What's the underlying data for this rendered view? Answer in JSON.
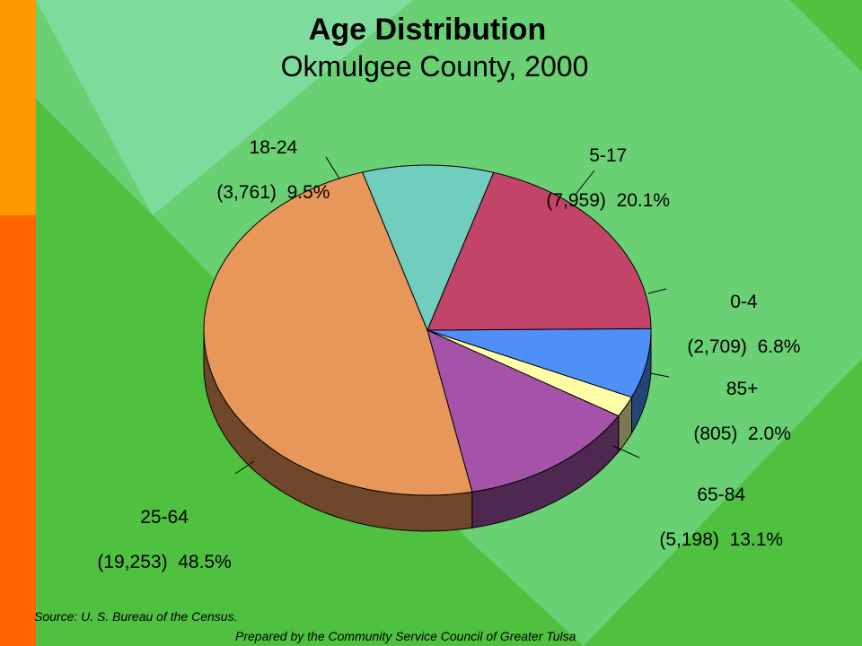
{
  "chart_data": {
    "type": "pie",
    "title": "Age Distribution",
    "subtitle": "Okmulgee County, 2000",
    "slices": [
      {
        "label": "0-4",
        "count": "(2,709)",
        "percent": "6.8%",
        "value": 2709,
        "color": "#4f8ff7"
      },
      {
        "label": "85+",
        "count": "(805)",
        "percent": "2.0%",
        "value": 805,
        "color": "#ffffa8"
      },
      {
        "label": "65-84",
        "count": "(5,198)",
        "percent": "13.1%",
        "value": 5198,
        "color": "#a453a8"
      },
      {
        "label": "25-64",
        "count": "(19,253)",
        "percent": "48.5%",
        "value": 19253,
        "color": "#e8975a"
      },
      {
        "label": "18-24",
        "count": "(3,761)",
        "percent": "9.5%",
        "value": 3761,
        "color": "#71cdbd"
      },
      {
        "label": "5-17",
        "count": "(7,959)",
        "percent": "20.1%",
        "value": 7959,
        "color": "#c24468"
      }
    ]
  },
  "footer": {
    "source": "Source:  U. S. Bureau of the Census.",
    "prepared_by": "Prepared by the Community Service Council of Greater Tulsa"
  },
  "colors": {
    "background": "#50c040",
    "diamond": "#7ddc9c",
    "left_bar_top": "#ff9900",
    "left_bar_bottom": "#ff6600"
  }
}
